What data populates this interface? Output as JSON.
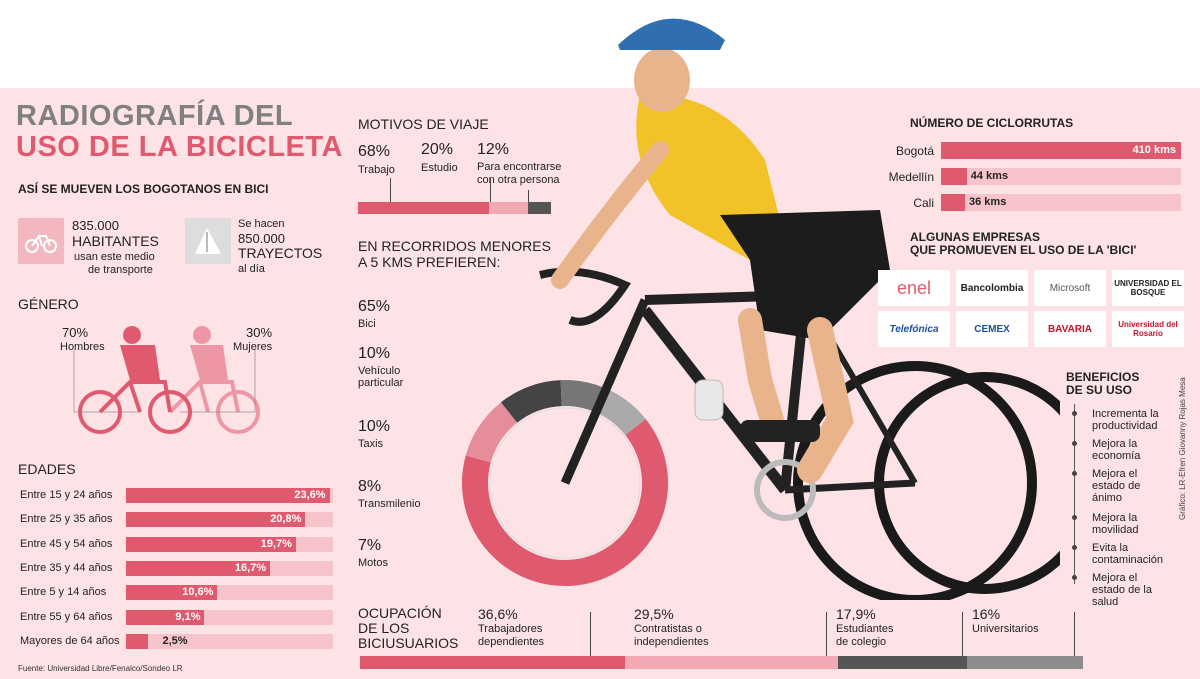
{
  "header": {
    "title_line1": "RADIOGRAFÍA DEL",
    "title_line2": "USO DE LA BICICLETA",
    "subtitle": "ASÍ SE MUEVEN LOS BOGOTANOS EN BICI"
  },
  "stats": {
    "habitantes_value": "835.000",
    "habitantes_label": "HABITANTES",
    "habitantes_desc1": "usan este medio",
    "habitantes_desc2": "de transporte",
    "trayectos_pre": "Se hacen",
    "trayectos_value": "850.000",
    "trayectos_label": "TRAYECTOS",
    "trayectos_desc": "al día"
  },
  "genero": {
    "title": "GÉNERO",
    "hombres_pct": "70%",
    "hombres_label": "Hombres",
    "mujeres_pct": "30%",
    "mujeres_label": "Mujeres"
  },
  "edades": {
    "title": "EDADES",
    "items": [
      {
        "label": "Entre 15 y 24 años",
        "value": 23.6,
        "text": "23,6%"
      },
      {
        "label": "Entre 25 y 35 años",
        "value": 20.8,
        "text": "20,8%"
      },
      {
        "label": "Entre 45 y 54 años",
        "value": 19.7,
        "text": "19,7%"
      },
      {
        "label": "Entre 35 y 44 años",
        "value": 16.7,
        "text": "16,7%"
      },
      {
        "label": "Entre 5 y 14 años",
        "value": 10.6,
        "text": "10,6%"
      },
      {
        "label": "Entre 55 y 64 años",
        "value": 9.1,
        "text": "9,1%"
      },
      {
        "label": "Mayores de 64 años",
        "value": 2.5,
        "text": "2,5%"
      }
    ]
  },
  "source": "Fuente: Universidad Libre/Fenalco/Sondeo LR",
  "motivos": {
    "title": "MOTIVOS DE VIAJE",
    "items": [
      {
        "pct": "68%",
        "label": "Trabajo",
        "value": 68
      },
      {
        "pct": "20%",
        "label": "Estudio",
        "value": 20
      },
      {
        "pct": "12%",
        "label1": "Para encontrarse",
        "label2": "con otra persona",
        "value": 12
      }
    ]
  },
  "recorridos": {
    "title1": "EN RECORRIDOS MENORES",
    "title2": "A 5 KMS PREFIEREN:",
    "items": [
      {
        "pct": "65%",
        "label1": "Bici",
        "label2": "",
        "value": 65
      },
      {
        "pct": "10%",
        "label1": "Vehículo",
        "label2": "particular",
        "value": 10
      },
      {
        "pct": "10%",
        "label1": "Taxis",
        "label2": "",
        "value": 10
      },
      {
        "pct": "8%",
        "label1": "Transmilenio",
        "label2": "",
        "value": 8
      },
      {
        "pct": "7%",
        "label1": "Motos",
        "label2": "",
        "value": 7
      }
    ]
  },
  "ciclorrutas": {
    "title": "NÚMERO DE CICLORRUTAS",
    "max": 410,
    "items": [
      {
        "city": "Bogotá",
        "value": 410,
        "text": "410 kms"
      },
      {
        "city": "Medellín",
        "value": 44,
        "text": "44 kms"
      },
      {
        "city": "Cali",
        "value": 36,
        "text": "36 kms"
      }
    ]
  },
  "empresas": {
    "title1": "ALGUNAS EMPRESAS",
    "title2": "QUE PROMUEVEN EL USO DE LA 'BICI'",
    "logos": [
      "enel",
      "Bancolombia",
      "Microsoft",
      "UNIVERSIDAD EL BOSQUE",
      "Telefónica",
      "CEMEX",
      "BAVARIA",
      "Universidad del Rosario"
    ]
  },
  "beneficios": {
    "title1": "BENEFICIOS",
    "title2": "DE SU USO",
    "items": [
      [
        "Incrementa la",
        "productividad"
      ],
      [
        "Mejora la",
        "economía"
      ],
      [
        "Mejora el",
        "estado de",
        "ánimo"
      ],
      [
        "Mejora la",
        "movilidad"
      ],
      [
        "Evita la",
        "contaminación"
      ],
      [
        "Mejora el",
        "estado de la",
        "salud"
      ]
    ]
  },
  "ocupacion": {
    "title1": "OCUPACIÓN",
    "title2": "DE LOS",
    "title3": "BICIUSUARIOS",
    "items": [
      {
        "pct": "36,6%",
        "label1": "Trabajadores",
        "label2": "dependientes",
        "value": 36.6
      },
      {
        "pct": "29,5%",
        "label1": "Contratistas o",
        "label2": "independientes",
        "value": 29.5
      },
      {
        "pct": "17,9%",
        "label1": "Estudiantes",
        "label2": "de colegio",
        "value": 17.9
      },
      {
        "pct": "16%",
        "label1": "Universitarios",
        "label2": "",
        "value": 16
      }
    ]
  },
  "credit": "Gráfico: LR-Efren Giovanny Rojas Mesa",
  "colors": {
    "accent": "#e05a6f",
    "light": "#f2a9b4",
    "dark": "#555555",
    "gray": "#8c8c8c",
    "bg": "#fde3e6"
  },
  "chart_data": [
    {
      "type": "bar",
      "categories": [
        "Entre 15 y 24 años",
        "Entre 25 y 35 años",
        "Entre 45 y 54 años",
        "Entre 35 y 44 años",
        "Entre 5 y 14 años",
        "Entre 55 y 64 años",
        "Mayores de 64 años"
      ],
      "values": [
        23.6,
        20.8,
        19.7,
        16.7,
        10.6,
        9.1,
        2.5
      ],
      "title": "EDADES"
    },
    {
      "type": "bar",
      "categories": [
        "Bogotá",
        "Medellín",
        "Cali"
      ],
      "values": [
        410,
        44,
        36
      ],
      "title": "NÚMERO DE CICLORRUTAS"
    },
    {
      "type": "bar",
      "categories": [
        "Trabajo",
        "Estudio",
        "Para encontrarse con otra persona"
      ],
      "values": [
        68,
        20,
        12
      ],
      "title": "MOTIVOS DE VIAJE"
    },
    {
      "type": "pie",
      "categories": [
        "Bici",
        "Vehículo particular",
        "Taxis",
        "Transmilenio",
        "Motos"
      ],
      "values": [
        65,
        10,
        10,
        8,
        7
      ],
      "title": "EN RECORRIDOS MENORES A 5 KMS PREFIEREN:"
    },
    {
      "type": "bar",
      "categories": [
        "Trabajadores dependientes",
        "Contratistas o independientes",
        "Estudiantes de colegio",
        "Universitarios"
      ],
      "values": [
        36.6,
        29.5,
        17.9,
        16
      ],
      "title": "OCUPACIÓN DE LOS BICIUSUARIOS"
    },
    {
      "type": "pie",
      "categories": [
        "Hombres",
        "Mujeres"
      ],
      "values": [
        70,
        30
      ],
      "title": "GÉNERO"
    }
  ]
}
